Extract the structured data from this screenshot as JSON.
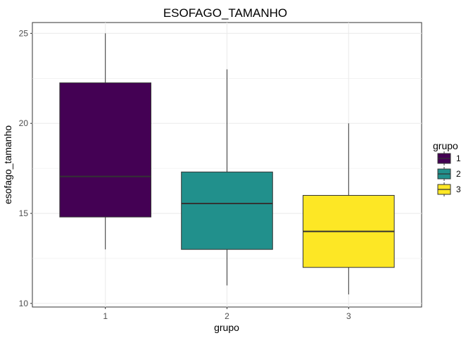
{
  "chart_data": {
    "type": "box",
    "title": "ESOFAGO_TAMANHO",
    "xlabel": "grupo",
    "ylabel": "esofago_tamanho",
    "ylim": [
      9.8,
      25.6
    ],
    "yticks": [
      10,
      15,
      20,
      25
    ],
    "categories": [
      "1",
      "2",
      "3"
    ],
    "grid": true,
    "legend": {
      "title": "grupo",
      "position": "right",
      "entries": [
        "1",
        "2",
        "3"
      ]
    },
    "series": [
      {
        "category": "1",
        "color": "#440154",
        "min": 13,
        "q1": 14.8,
        "median": 17.05,
        "q3": 22.25,
        "max": 25
      },
      {
        "category": "2",
        "color": "#21908C",
        "min": 11,
        "q1": 13,
        "median": 15.55,
        "q3": 17.3,
        "max": 23
      },
      {
        "category": "3",
        "color": "#FDE725",
        "min": 10.5,
        "q1": 12,
        "median": 14,
        "q3": 16,
        "max": 20
      }
    ]
  }
}
